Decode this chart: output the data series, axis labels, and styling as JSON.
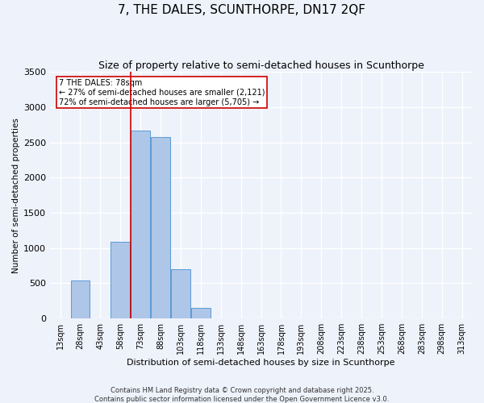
{
  "title": "7, THE DALES, SCUNTHORPE, DN17 2QF",
  "subtitle": "Size of property relative to semi-detached houses in Scunthorpe",
  "xlabel": "Distribution of semi-detached houses by size in Scunthorpe",
  "ylabel": "Number of semi-detached properties",
  "footnote1": "Contains HM Land Registry data © Crown copyright and database right 2025.",
  "footnote2": "Contains public sector information licensed under the Open Government Licence v3.0.",
  "bin_labels": [
    "13sqm",
    "28sqm",
    "43sqm",
    "58sqm",
    "73sqm",
    "88sqm",
    "103sqm",
    "118sqm",
    "133sqm",
    "148sqm",
    "163sqm",
    "178sqm",
    "193sqm",
    "208sqm",
    "223sqm",
    "238sqm",
    "253sqm",
    "268sqm",
    "283sqm",
    "298sqm",
    "313sqm"
  ],
  "bar_values": [
    0,
    540,
    0,
    1090,
    2670,
    2580,
    700,
    155,
    0,
    0,
    0,
    0,
    0,
    0,
    0,
    0,
    0,
    0,
    0,
    0,
    0
  ],
  "bar_color": "#aec6e8",
  "bar_edge_color": "#5b9bd5",
  "vline_x_index": 4,
  "property_label": "7 THE DALES: 78sqm",
  "annotation_line1": "← 27% of semi-detached houses are smaller (2,121)",
  "annotation_line2": "72% of semi-detached houses are larger (5,705) →",
  "annotation_box_color": "#cc0000",
  "vline_color": "#cc0000",
  "ylim": [
    0,
    3500
  ],
  "yticks": [
    0,
    500,
    1000,
    1500,
    2000,
    2500,
    3000,
    3500
  ],
  "background_color": "#eef2fb",
  "grid_color": "#ffffff",
  "title_fontsize": 11,
  "subtitle_fontsize": 9,
  "xlabel_fontsize": 8,
  "ylabel_fontsize": 7.5,
  "tick_fontsize": 7,
  "ytick_fontsize": 8,
  "annotation_fontsize": 7,
  "footnote_fontsize": 6
}
